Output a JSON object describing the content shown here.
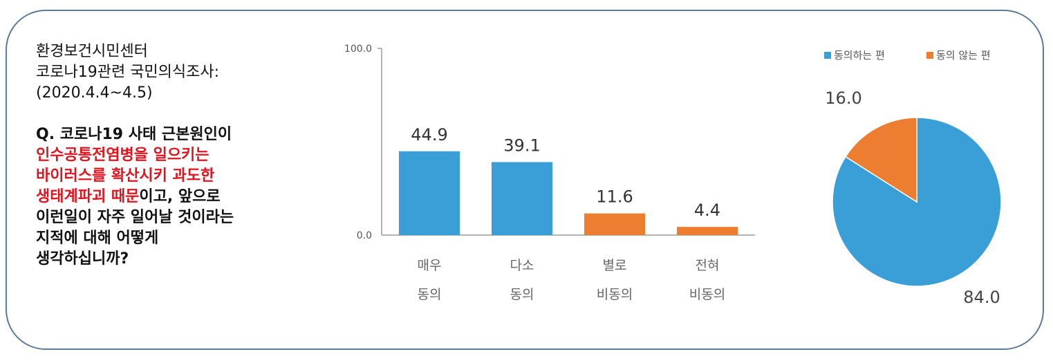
{
  "source": {
    "line1": "환경보건시민센터",
    "line2": "코로나19관련 국민의식조사:",
    "line3": "(2020.4.4~4.5)"
  },
  "question": {
    "part1": "Q. 코로나19 사태 근본원인이",
    "highlight1": "인수공통전염병을 일으키는",
    "highlight2": "바이러스를 확산시키 과도한",
    "highlight3": "생태계파괴 때문",
    "part2": "이고, 앞으로",
    "part3": "이런일이 자주 일어날 것이라는",
    "part4": "지적에 대해 어떻게",
    "part5": "생각하십니까?"
  },
  "colors": {
    "agree": "#3a9fd6",
    "disagree": "#ed7d31",
    "frame": "#5a7a96",
    "highlight": "#e0141e"
  },
  "chart_data": [
    {
      "type": "bar",
      "categories": [
        [
          "매우",
          "동의"
        ],
        [
          "다소",
          "동의"
        ],
        [
          "별로",
          "비동의"
        ],
        [
          "전혀",
          "비동의"
        ]
      ],
      "values": [
        44.9,
        39.1,
        11.6,
        4.4
      ],
      "value_labels": [
        "44.9",
        "39.1",
        "11.6",
        "4.4"
      ],
      "bar_groups": [
        "agree",
        "agree",
        "disagree",
        "disagree"
      ],
      "ylim": [
        0,
        100
      ],
      "yticks": [
        "0.0",
        "100.0"
      ],
      "xlabel": "",
      "ylabel": ""
    },
    {
      "type": "pie",
      "labels": [
        "동의하는 편",
        "동의 않는 편"
      ],
      "values": [
        84.0,
        16.0
      ],
      "value_labels": [
        "84.0",
        "16.0"
      ],
      "legend_position": "top"
    }
  ]
}
